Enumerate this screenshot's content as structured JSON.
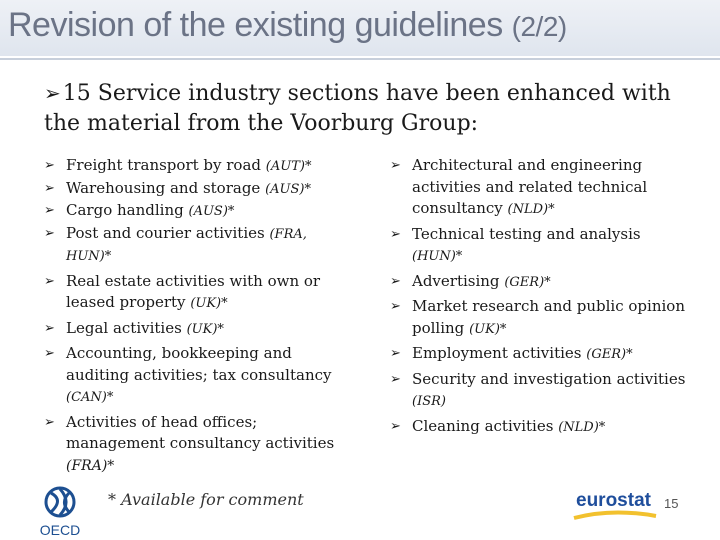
{
  "slide": {
    "title": "Revision of the existing guidelines",
    "title_part": "(2/2)",
    "intro": "15 Service industry sections have been enhanced with the material from the Voorburg Group:",
    "left_items": [
      {
        "text": "Freight transport by road",
        "note": "(AUT)*"
      },
      {
        "text": "Warehousing and storage",
        "note": "(AUS)*"
      },
      {
        "text": "Cargo handling",
        "note": "(AUS)*"
      },
      {
        "text": "Post and courier activities",
        "note": "(FRA, HUN)*"
      },
      {
        "text": "Real estate activities with own or leased property",
        "note": "(UK)*"
      },
      {
        "text": "Legal activities",
        "note": "(UK)*"
      },
      {
        "text": "Accounting, bookkeeping and auditing activities; tax consultancy",
        "note": "(CAN)*"
      },
      {
        "text": "Activities of head offices; management consultancy activities",
        "note": "(FRA)*"
      }
    ],
    "right_items": [
      {
        "text": "Architectural and engineering activities and related technical consultancy",
        "note": "(NLD)*"
      },
      {
        "text": "Technical testing and analysis",
        "note": "(HUN)*"
      },
      {
        "text": "Advertising",
        "note": "(GER)*"
      },
      {
        "text": "Market research and public opinion polling",
        "note": "(UK)*"
      },
      {
        "text": "Employment activities",
        "note": "(GER)*"
      },
      {
        "text": "Security and investigation activities",
        "note": "(ISR)"
      },
      {
        "text": "Cleaning activities",
        "note": "(NLD)*"
      }
    ],
    "footnote": "* Available for comment",
    "page_number": "15",
    "logos": {
      "oecd": "OECD",
      "eurostat": "eurostat"
    },
    "colors": {
      "title": "#6b7386",
      "eurostat_blue": "#1f4e9c",
      "eurostat_yellow": "#f2c12e",
      "oecd_blue": "#1d4f91"
    }
  }
}
